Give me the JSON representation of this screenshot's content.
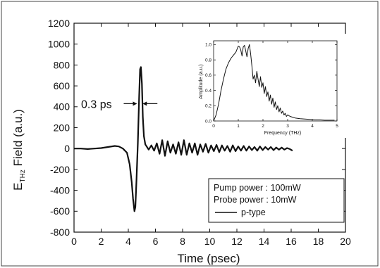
{
  "chart_data": [
    {
      "type": "line",
      "title": "",
      "xlabel": "Time (psec)",
      "ylabel_main": "E",
      "ylabel_sub": "THz",
      "ylabel_rest": " Field (a.u.)",
      "xlim": [
        0,
        20
      ],
      "ylim": [
        -800,
        1200
      ],
      "xticks": [
        0,
        2,
        4,
        6,
        8,
        10,
        12,
        14,
        16,
        18,
        20
      ],
      "yticks": [
        -800,
        -600,
        -400,
        -200,
        0,
        200,
        400,
        600,
        800,
        1000,
        1200
      ],
      "grid": false,
      "legend": {
        "placement": "bottom-right",
        "lines": [
          "Pump power : 100mW",
          "Probe power : 10mW"
        ],
        "series_label": "p-type"
      },
      "annotation": {
        "text": "0.3 ps",
        "x_start": 4.7,
        "x_end": 5.0,
        "y": 430
      },
      "series": [
        {
          "name": "p-type",
          "color": "#111111",
          "x": [
            0.0,
            0.5,
            1.0,
            1.5,
            2.0,
            2.5,
            3.0,
            3.3,
            3.6,
            3.9,
            4.1,
            4.25,
            4.35,
            4.45,
            4.52,
            4.6,
            4.7,
            4.8,
            4.87,
            4.93,
            5.0,
            5.07,
            5.15,
            5.25,
            5.35,
            5.5,
            5.7,
            5.9,
            6.1,
            6.3,
            6.5,
            6.7,
            6.9,
            7.1,
            7.3,
            7.5,
            7.7,
            7.9,
            8.1,
            8.3,
            8.5,
            8.7,
            8.9,
            9.1,
            9.3,
            9.5,
            9.7,
            9.9,
            10.1,
            10.3,
            10.5,
            10.7,
            10.9,
            11.1,
            11.3,
            11.5,
            11.7,
            11.9,
            12.1,
            12.3,
            12.5,
            12.7,
            12.9,
            13.1,
            13.3,
            13.5,
            13.7,
            13.9,
            14.1,
            14.3,
            14.5,
            14.7,
            14.9,
            15.1,
            15.3,
            15.5,
            15.7,
            15.9,
            16.1
          ],
          "y": [
            0,
            0,
            -5,
            0,
            5,
            15,
            25,
            20,
            0,
            -40,
            -150,
            -320,
            -480,
            -600,
            -560,
            -300,
            50,
            500,
            760,
            780,
            620,
            300,
            120,
            40,
            20,
            -10,
            30,
            -20,
            50,
            -50,
            80,
            -70,
            70,
            -40,
            40,
            -50,
            60,
            -60,
            80,
            -60,
            50,
            -40,
            50,
            -60,
            40,
            -30,
            45,
            -40,
            30,
            -25,
            35,
            -35,
            30,
            -20,
            25,
            -30,
            30,
            -25,
            20,
            -20,
            25,
            -20,
            20,
            -15,
            15,
            -20,
            20,
            -15,
            15,
            -10,
            15,
            -15,
            10,
            -10,
            10,
            -10,
            5,
            -5,
            -20
          ]
        }
      ]
    },
    {
      "type": "line",
      "title": "",
      "xlabel": "Frequency (THz)",
      "ylabel": "Amplitude (a.u.)",
      "xlim": [
        0,
        5
      ],
      "ylim": [
        0,
        1.05
      ],
      "xticks": [
        0,
        1,
        2,
        3,
        4,
        5
      ],
      "yticks": [
        0.0,
        0.2,
        0.4,
        0.6,
        0.8,
        1.0
      ],
      "ytick_labels": [
        "0.0",
        "0.2",
        "0.4",
        "0.6",
        "0.8",
        "1.0"
      ],
      "grid": false,
      "series": [
        {
          "name": "",
          "color": "#111111",
          "x": [
            0.0,
            0.1,
            0.2,
            0.3,
            0.4,
            0.5,
            0.6,
            0.7,
            0.8,
            0.9,
            1.0,
            1.05,
            1.1,
            1.15,
            1.2,
            1.25,
            1.3,
            1.35,
            1.4,
            1.45,
            1.5,
            1.55,
            1.6,
            1.65,
            1.7,
            1.75,
            1.8,
            1.85,
            1.9,
            1.95,
            2.0,
            2.05,
            2.1,
            2.15,
            2.2,
            2.25,
            2.3,
            2.35,
            2.4,
            2.45,
            2.5,
            2.55,
            2.6,
            2.65,
            2.7,
            2.75,
            2.8,
            2.85,
            2.9,
            2.95,
            3.0,
            3.1,
            3.2,
            3.3,
            3.5,
            3.7,
            3.9,
            4.1,
            4.3,
            4.5,
            4.7,
            4.9
          ],
          "y": [
            0.0,
            0.08,
            0.22,
            0.4,
            0.55,
            0.68,
            0.76,
            0.82,
            0.86,
            0.9,
            0.98,
            0.97,
            0.93,
            0.85,
            0.97,
            0.99,
            0.92,
            0.84,
            0.95,
            1.0,
            0.88,
            0.72,
            0.55,
            0.6,
            0.5,
            0.65,
            0.55,
            0.45,
            0.58,
            0.44,
            0.5,
            0.36,
            0.45,
            0.32,
            0.38,
            0.26,
            0.34,
            0.22,
            0.3,
            0.18,
            0.25,
            0.15,
            0.2,
            0.12,
            0.17,
            0.1,
            0.13,
            0.08,
            0.1,
            0.06,
            0.08,
            0.06,
            0.05,
            0.04,
            0.03,
            0.025,
            0.02,
            0.015,
            0.015,
            0.01,
            0.01,
            0.01
          ]
        }
      ]
    }
  ]
}
